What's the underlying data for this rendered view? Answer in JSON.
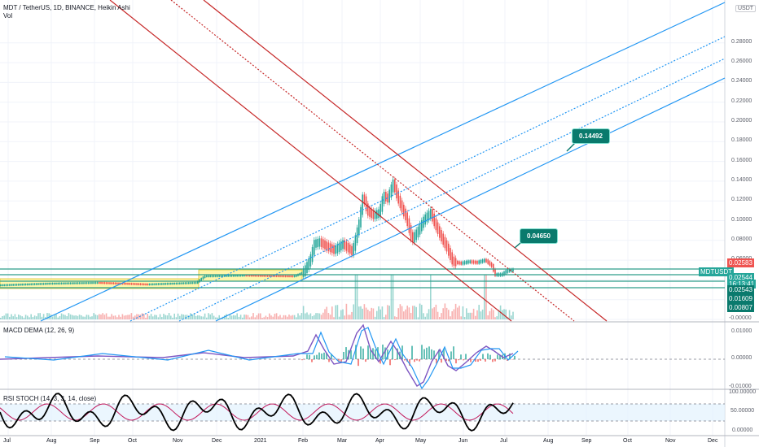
{
  "header": {
    "title": "MDT / TetherUS, 1D, BINANCE, Heikin Ashi",
    "vol_label": "Vol",
    "currency": "USDT"
  },
  "price_axis": {
    "ticks": [
      "0.28000",
      "0.26000",
      "0.24000",
      "0.22000",
      "0.20000",
      "0.18000",
      "0.16000",
      "0.14000",
      "0.12000",
      "0.10000",
      "0.08000",
      "0.06000",
      "0.04000",
      "0.02000",
      "-0.00000"
    ],
    "ticks_num": [
      0.28,
      0.26,
      0.24,
      0.22,
      0.2,
      0.18,
      0.16,
      0.14,
      0.12,
      0.1,
      0.08,
      0.06,
      0.04,
      0.02,
      0.0
    ],
    "badges": [
      {
        "text": "0.02583",
        "color": "#ef5350"
      },
      {
        "text": "MDTUSDT",
        "color": "#26a69a"
      },
      {
        "text": "0.02544",
        "color": "#26a69a"
      },
      {
        "text": "16:13:41",
        "color": "#26a69a"
      },
      {
        "text": "0.02543",
        "color": "#0a7a6d"
      },
      {
        "text": "0.01609",
        "color": "#0a7a6d"
      },
      {
        "text": "0.00807",
        "color": "#0a7a6d"
      }
    ]
  },
  "callouts": [
    {
      "text": "0.14492",
      "value": 0.14492
    },
    {
      "text": "0.04650",
      "value": 0.0465
    }
  ],
  "macd": {
    "label": "MACD DEMA (12, 26, 9)",
    "ticks": [
      "0.01000",
      "0.00000",
      "-0.01000"
    ]
  },
  "stoch": {
    "label": "RSI STOCH (14, 3, 3, 14, close)",
    "ticks": [
      "100.00000",
      "50.00000",
      "0.00000"
    ]
  },
  "time_axis": {
    "labels": [
      "Jul",
      "Aug",
      "Sep",
      "Oct",
      "Nov",
      "Dec",
      "2021",
      "Feb",
      "Mar",
      "Apr",
      "May",
      "Jun",
      "Jul",
      "Aug",
      "Sep",
      "Oct",
      "Nov",
      "Dec"
    ]
  },
  "colors": {
    "up": "#26a69a",
    "down": "#ef5350",
    "channel_blue": "#2196f3",
    "channel_red": "#c62828",
    "highlight": "#fff59d"
  }
}
